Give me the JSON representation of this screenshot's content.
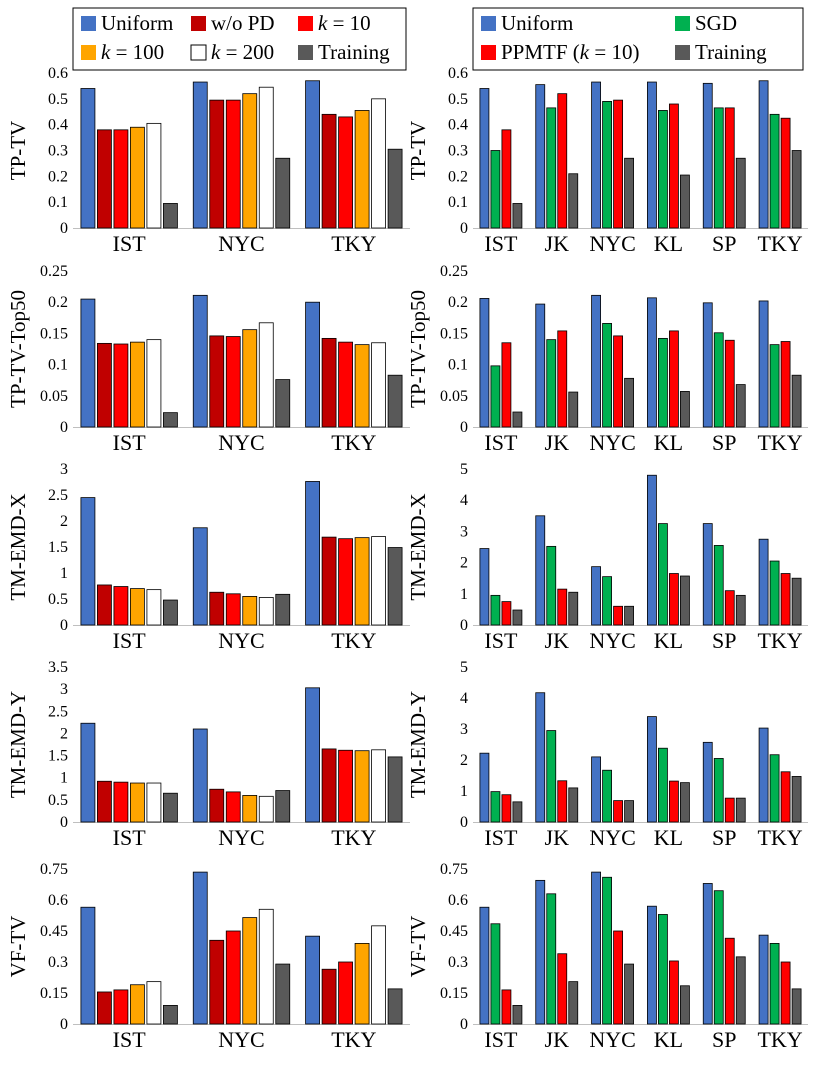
{
  "legends": {
    "left": [
      {
        "label": "Uniform",
        "color": "#4472C4"
      },
      {
        "label": "w/o PD",
        "color": "#C00000"
      },
      {
        "label": "k = 10",
        "color": "#FF0000"
      },
      {
        "label": "k = 100",
        "color": "#FFA500"
      },
      {
        "label": "k = 200",
        "color": "#FFFFFF"
      },
      {
        "label": "Training",
        "color": "#595959"
      }
    ],
    "right": [
      {
        "label": "Uniform",
        "color": "#4472C4"
      },
      {
        "label": "SGD",
        "color": "#00B050"
      },
      {
        "label": "PPMTF (k = 10)",
        "color": "#FF0000"
      },
      {
        "label": "Training",
        "color": "#595959"
      }
    ]
  },
  "chart_data": [
    {
      "type": "bar",
      "side": "left",
      "ylabel": "TP-TV",
      "ylim": [
        0,
        0.6
      ],
      "yticks": [
        "0",
        "0.1",
        "0.2",
        "0.3",
        "0.4",
        "0.5",
        "0.6"
      ],
      "categories": [
        "IST",
        "NYC",
        "TKY"
      ],
      "series": [
        {
          "name": "Uniform",
          "values": [
            0.54,
            0.565,
            0.57
          ]
        },
        {
          "name": "w/o PD",
          "values": [
            0.38,
            0.495,
            0.44
          ]
        },
        {
          "name": "k = 10",
          "values": [
            0.38,
            0.495,
            0.43
          ]
        },
        {
          "name": "k = 100",
          "values": [
            0.39,
            0.52,
            0.455
          ]
        },
        {
          "name": "k = 200",
          "values": [
            0.405,
            0.545,
            0.5
          ]
        },
        {
          "name": "Training",
          "values": [
            0.095,
            0.27,
            0.305
          ]
        }
      ]
    },
    {
      "type": "bar",
      "side": "right",
      "ylabel": "TP-TV",
      "ylim": [
        0,
        0.6
      ],
      "yticks": [
        "0",
        "0.1",
        "0.2",
        "0.3",
        "0.4",
        "0.5",
        "0.6"
      ],
      "categories": [
        "IST",
        "JK",
        "NYC",
        "KL",
        "SP",
        "TKY"
      ],
      "series": [
        {
          "name": "Uniform",
          "values": [
            0.54,
            0.555,
            0.565,
            0.565,
            0.56,
            0.57
          ]
        },
        {
          "name": "SGD",
          "values": [
            0.3,
            0.465,
            0.49,
            0.455,
            0.465,
            0.44
          ]
        },
        {
          "name": "PPMTF (k = 10)",
          "values": [
            0.38,
            0.52,
            0.495,
            0.48,
            0.465,
            0.425
          ]
        },
        {
          "name": "Training",
          "values": [
            0.095,
            0.21,
            0.27,
            0.205,
            0.27,
            0.3
          ]
        }
      ]
    },
    {
      "type": "bar",
      "side": "left",
      "ylabel": "TP-TV-Top50",
      "ylim": [
        0,
        0.25
      ],
      "yticks": [
        "0",
        "0.05",
        "0.1",
        "0.15",
        "0.2",
        "0.25"
      ],
      "categories": [
        "IST",
        "NYC",
        "TKY"
      ],
      "series": [
        {
          "name": "Uniform",
          "values": [
            0.205,
            0.211,
            0.2
          ]
        },
        {
          "name": "w/o PD",
          "values": [
            0.134,
            0.146,
            0.142
          ]
        },
        {
          "name": "k = 10",
          "values": [
            0.133,
            0.145,
            0.136
          ]
        },
        {
          "name": "k = 100",
          "values": [
            0.136,
            0.156,
            0.132
          ]
        },
        {
          "name": "k = 200",
          "values": [
            0.14,
            0.167,
            0.135
          ]
        },
        {
          "name": "Training",
          "values": [
            0.023,
            0.076,
            0.083
          ]
        }
      ]
    },
    {
      "type": "bar",
      "side": "right",
      "ylabel": "TP-TV-Top50",
      "ylim": [
        0,
        0.25
      ],
      "yticks": [
        "0",
        "0.05",
        "0.1",
        "0.15",
        "0.2",
        "0.25"
      ],
      "categories": [
        "IST",
        "JK",
        "NYC",
        "KL",
        "SP",
        "TKY"
      ],
      "series": [
        {
          "name": "Uniform",
          "values": [
            0.206,
            0.197,
            0.211,
            0.207,
            0.199,
            0.202
          ]
        },
        {
          "name": "SGD",
          "values": [
            0.098,
            0.14,
            0.166,
            0.142,
            0.151,
            0.132
          ]
        },
        {
          "name": "PPMTF (k = 10)",
          "values": [
            0.135,
            0.154,
            0.146,
            0.154,
            0.139,
            0.137
          ]
        },
        {
          "name": "Training",
          "values": [
            0.024,
            0.056,
            0.078,
            0.057,
            0.068,
            0.083
          ]
        }
      ]
    },
    {
      "type": "bar",
      "side": "left",
      "ylabel": "TM-EMD-X",
      "ylim": [
        0,
        3
      ],
      "yticks": [
        "0",
        "0.5",
        "1",
        "1.5",
        "2",
        "2.5",
        "3"
      ],
      "categories": [
        "IST",
        "NYC",
        "TKY"
      ],
      "series": [
        {
          "name": "Uniform",
          "values": [
            2.45,
            1.87,
            2.76
          ]
        },
        {
          "name": "w/o PD",
          "values": [
            0.77,
            0.63,
            1.69
          ]
        },
        {
          "name": "k = 10",
          "values": [
            0.74,
            0.6,
            1.66
          ]
        },
        {
          "name": "k = 100",
          "values": [
            0.7,
            0.55,
            1.68
          ]
        },
        {
          "name": "k = 200",
          "values": [
            0.68,
            0.53,
            1.7
          ]
        },
        {
          "name": "Training",
          "values": [
            0.48,
            0.59,
            1.49
          ]
        }
      ]
    },
    {
      "type": "bar",
      "side": "right",
      "ylabel": "TM-EMD-X",
      "ylim": [
        0,
        5
      ],
      "yticks": [
        "0",
        "1",
        "2",
        "3",
        "4",
        "5"
      ],
      "categories": [
        "IST",
        "JK",
        "NYC",
        "KL",
        "SP",
        "TKY"
      ],
      "series": [
        {
          "name": "Uniform",
          "values": [
            2.45,
            3.5,
            1.87,
            4.8,
            3.25,
            2.75
          ]
        },
        {
          "name": "SGD",
          "values": [
            0.95,
            2.52,
            1.55,
            3.25,
            2.55,
            2.05
          ]
        },
        {
          "name": "PPMTF (k = 10)",
          "values": [
            0.75,
            1.15,
            0.6,
            1.65,
            1.1,
            1.65
          ]
        },
        {
          "name": "Training",
          "values": [
            0.48,
            1.05,
            0.6,
            1.57,
            0.95,
            1.5
          ]
        }
      ]
    },
    {
      "type": "bar",
      "side": "left",
      "ylabel": "TM-EMD-Y",
      "ylim": [
        0,
        3.5
      ],
      "yticks": [
        "0",
        "0.5",
        "1",
        "1.5",
        "2",
        "2.5",
        "3",
        "3.5"
      ],
      "categories": [
        "IST",
        "NYC",
        "TKY"
      ],
      "series": [
        {
          "name": "Uniform",
          "values": [
            2.23,
            2.1,
            3.03
          ]
        },
        {
          "name": "w/o PD",
          "values": [
            0.92,
            0.74,
            1.65
          ]
        },
        {
          "name": "k = 10",
          "values": [
            0.9,
            0.68,
            1.62
          ]
        },
        {
          "name": "k = 100",
          "values": [
            0.88,
            0.6,
            1.61
          ]
        },
        {
          "name": "k = 200",
          "values": [
            0.88,
            0.58,
            1.63
          ]
        },
        {
          "name": "Training",
          "values": [
            0.65,
            0.71,
            1.47
          ]
        }
      ]
    },
    {
      "type": "bar",
      "side": "right",
      "ylabel": "TM-EMD-Y",
      "ylim": [
        0,
        5
      ],
      "yticks": [
        "0",
        "1",
        "2",
        "3",
        "4",
        "5"
      ],
      "categories": [
        "IST",
        "JK",
        "NYC",
        "KL",
        "SP",
        "TKY"
      ],
      "series": [
        {
          "name": "Uniform",
          "values": [
            2.22,
            4.17,
            2.1,
            3.4,
            2.57,
            3.03
          ]
        },
        {
          "name": "SGD",
          "values": [
            0.98,
            2.95,
            1.67,
            2.38,
            2.05,
            2.17
          ]
        },
        {
          "name": "PPMTF (k = 10)",
          "values": [
            0.88,
            1.33,
            0.69,
            1.32,
            0.77,
            1.62
          ]
        },
        {
          "name": "Training",
          "values": [
            0.65,
            1.1,
            0.69,
            1.27,
            0.77,
            1.47
          ]
        }
      ]
    },
    {
      "type": "bar",
      "side": "left",
      "ylabel": "VF-TV",
      "ylim": [
        0,
        0.75
      ],
      "yticks": [
        "0",
        "0.15",
        "0.3",
        "0.45",
        "0.6",
        "0.75"
      ],
      "categories": [
        "IST",
        "NYC",
        "TKY"
      ],
      "series": [
        {
          "name": "Uniform",
          "values": [
            0.565,
            0.735,
            0.425
          ]
        },
        {
          "name": "w/o PD",
          "values": [
            0.155,
            0.405,
            0.265
          ]
        },
        {
          "name": "k = 10",
          "values": [
            0.165,
            0.45,
            0.3
          ]
        },
        {
          "name": "k = 100",
          "values": [
            0.19,
            0.515,
            0.39
          ]
        },
        {
          "name": "k = 200",
          "values": [
            0.205,
            0.555,
            0.475
          ]
        },
        {
          "name": "Training",
          "values": [
            0.09,
            0.29,
            0.17
          ]
        }
      ]
    },
    {
      "type": "bar",
      "side": "right",
      "ylabel": "VF-TV",
      "ylim": [
        0,
        0.75
      ],
      "yticks": [
        "0",
        "0.15",
        "0.3",
        "0.45",
        "0.6",
        "0.75"
      ],
      "categories": [
        "IST",
        "JK",
        "NYC",
        "KL",
        "SP",
        "TKY"
      ],
      "series": [
        {
          "name": "Uniform",
          "values": [
            0.565,
            0.695,
            0.735,
            0.57,
            0.68,
            0.43
          ]
        },
        {
          "name": "SGD",
          "values": [
            0.485,
            0.63,
            0.71,
            0.53,
            0.645,
            0.39
          ]
        },
        {
          "name": "PPMTF (k = 10)",
          "values": [
            0.165,
            0.34,
            0.45,
            0.305,
            0.415,
            0.3
          ]
        },
        {
          "name": "Training",
          "values": [
            0.09,
            0.205,
            0.29,
            0.185,
            0.325,
            0.17
          ]
        }
      ]
    }
  ]
}
